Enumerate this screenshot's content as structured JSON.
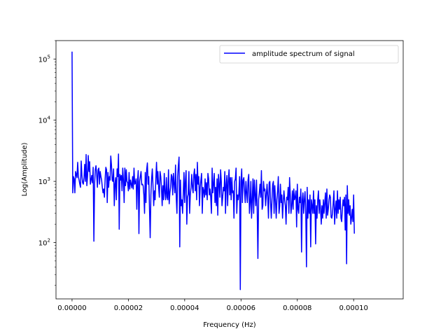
{
  "chart_data": {
    "type": "line",
    "title": "",
    "xlabel": "Frequency (Hz)",
    "ylabel": "Log(Amplitude)",
    "yscale": "log",
    "xlim": [
      -5.7e-06,
      0.0001176
    ],
    "ylim": [
      12,
      200000
    ],
    "x_ticks": [
      {
        "value": 0.0,
        "label": "0.00000"
      },
      {
        "value": 2e-05,
        "label": "0.00002"
      },
      {
        "value": 4e-05,
        "label": "0.00004"
      },
      {
        "value": 6e-05,
        "label": "0.00006"
      },
      {
        "value": 8e-05,
        "label": "0.00008"
      },
      {
        "value": 0.0001,
        "label": "0.00010"
      }
    ],
    "y_ticks": [
      {
        "value": 100,
        "base": "10",
        "exp": "2"
      },
      {
        "value": 1000,
        "base": "10",
        "exp": "3"
      },
      {
        "value": 10000,
        "base": "10",
        "exp": "4"
      },
      {
        "value": 100000,
        "base": "10",
        "exp": "5"
      }
    ],
    "grid": false,
    "legend": {
      "position": "top-right",
      "entries": [
        "amplitude spectrum of signal"
      ]
    },
    "series": [
      {
        "name": "amplitude spectrum of signal",
        "color": "#0000ff",
        "x_start": 0.0,
        "x_step": 2.5e-07,
        "values": [
          132000,
          650,
          1200,
          1100,
          650,
          1450,
          1300,
          1150,
          2050,
          1200,
          1050,
          900,
          800,
          2150,
          1250,
          950,
          900,
          1150,
          1900,
          1000,
          2750,
          850,
          1200,
          2650,
          1450,
          2100,
          900,
          1050,
          1250,
          950,
          1700,
          105,
          900,
          1550,
          1800,
          1300,
          800,
          1550,
          1650,
          900,
          1450,
          1200,
          1050,
          800,
          650,
          750,
          550,
          1100,
          1700,
          1550,
          450,
          1400,
          800,
          1200,
          1050,
          2600,
          1850,
          1050,
          1000,
          1600,
          400,
          900,
          1150,
          500,
          1600,
          1200,
          2800,
          165,
          1300,
          1050,
          1250,
          700,
          1650,
          1050,
          450,
          1650,
          850,
          1550,
          1000,
          950,
          700,
          1400,
          750,
          1050,
          900,
          780,
          1200,
          750,
          1650,
          900,
          940,
          1100,
          350,
          1000,
          1500,
          140,
          1000,
          1200,
          1450,
          880,
          900,
          850,
          600,
          300,
          1400,
          450,
          1550,
          2000,
          900,
          1200,
          360,
          120,
          600,
          1100,
          1600,
          840,
          400,
          700,
          500,
          1100,
          2050,
          900,
          1450,
          800,
          550,
          1450,
          1200,
          800,
          400,
          850,
          500,
          1350,
          650,
          500,
          1150,
          550,
          500,
          1550,
          430,
          650,
          800,
          1300,
          1200,
          600,
          1350,
          900,
          650,
          1850,
          550,
          300,
          1200,
          1800,
          2500,
          85,
          1050,
          400,
          500,
          300,
          650,
          1400,
          450,
          1000,
          1500,
          200,
          550,
          620,
          1450,
          300,
          600,
          800,
          1300,
          800,
          650,
          1300,
          1600,
          700,
          1300,
          500,
          2050,
          900,
          1200,
          400,
          800,
          1050,
          1350,
          300,
          800,
          700,
          550,
          1100,
          600,
          950,
          500,
          1350,
          1100,
          600,
          750,
          550,
          300,
          1650,
          650,
          900,
          1350,
          450,
          800,
          400,
          1100,
          280,
          1300,
          900,
          550,
          1550,
          1000,
          400,
          550,
          800,
          700,
          1450,
          300,
          900,
          1250,
          400,
          1000,
          1550,
          600,
          1150,
          500,
          1150,
          650,
          700,
          250,
          1000,
          1100,
          1650,
          300,
          600,
          500,
          650,
          1200,
          17,
          1000,
          1600,
          450,
          1050,
          1150,
          700,
          450,
          1000,
          650,
          450,
          1050,
          1300,
          300,
          450,
          1000,
          250,
          500,
          1100,
          300,
          1050,
          600,
          400,
          1050,
          350,
          55,
          500,
          650,
          900,
          550,
          1500,
          350,
          400,
          1000,
          700,
          750,
          400,
          600,
          900,
          550,
          250,
          950,
          1000,
          450,
          250,
          500,
          900,
          1000,
          300,
          850,
          500,
          250,
          500,
          700,
          1200,
          300,
          400,
          900,
          450,
          600,
          250,
          450,
          700,
          500,
          400,
          200,
          550,
          500,
          800,
          300,
          1150,
          600,
          300,
          400,
          700,
          350,
          750,
          500,
          550,
          700,
          180,
          900,
          350,
          300,
          550,
          450,
          750,
          70,
          500,
          650,
          300,
          500,
          680,
          300,
          40,
          800,
          250,
          500,
          300,
          600,
          85,
          500,
          400,
          300,
          700,
          300,
          500,
          95,
          400,
          250,
          500,
          700,
          300,
          500,
          350,
          200,
          400,
          250,
          500,
          300,
          450,
          650,
          250,
          750,
          280,
          350,
          500,
          600,
          550,
          260,
          250,
          300,
          450,
          700,
          200,
          350,
          480,
          250,
          700,
          300,
          500,
          350,
          550,
          250,
          220,
          350,
          500,
          400,
          550,
          160,
          600,
          45,
          850,
          300,
          500,
          280,
          400,
          200,
          250,
          350,
          220,
          600,
          140
        ]
      }
    ]
  }
}
